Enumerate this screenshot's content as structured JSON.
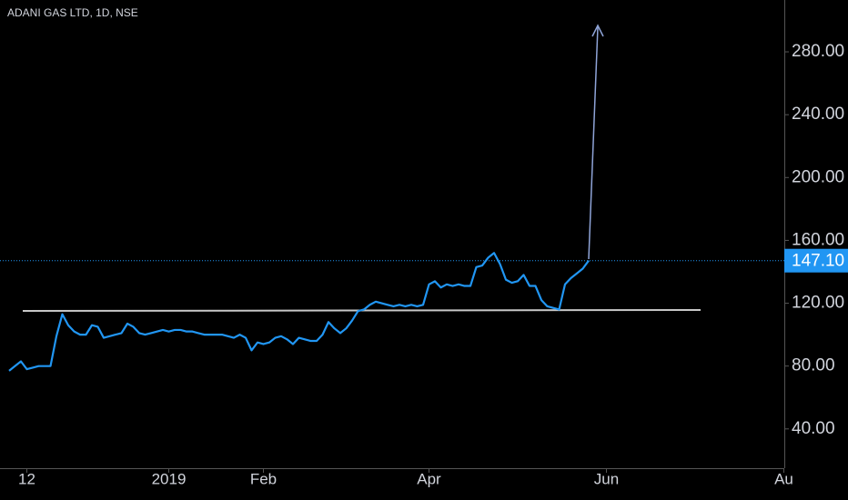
{
  "chart_data": {
    "type": "line",
    "title": "ADANI GAS LTD, 1D, NSE",
    "categories": [
      null,
      null,
      null,
      "12",
      null,
      null,
      null,
      null,
      null,
      null,
      null,
      null,
      null,
      null,
      null,
      null,
      null,
      null,
      null,
      null,
      null,
      null,
      null,
      null,
      null,
      null,
      null,
      "2019",
      null,
      null,
      null,
      null,
      null,
      null,
      null,
      null,
      null,
      null,
      null,
      null,
      null,
      null,
      null,
      "Feb",
      null,
      null,
      null,
      null,
      null,
      null,
      null,
      null,
      null,
      null,
      null,
      null,
      null,
      null,
      null,
      null,
      null,
      null,
      null,
      null,
      null,
      null,
      null,
      null,
      null,
      null,
      null,
      "Apr",
      null,
      null,
      null,
      null,
      null,
      null,
      null,
      null,
      null,
      null,
      null,
      null,
      null,
      null,
      null,
      null,
      null,
      null,
      null,
      null,
      null,
      null,
      null,
      null,
      null,
      null,
      null,
      null,
      null,
      "Jun",
      null,
      null,
      null,
      null,
      null,
      null,
      null,
      null,
      null,
      null,
      null,
      null,
      null,
      null,
      null,
      null,
      null,
      null,
      null,
      null,
      null,
      null,
      null,
      null,
      null,
      null,
      null,
      null,
      null,
      "Au",
      null
    ],
    "series": [
      {
        "color": "#2196f3",
        "values": [
          77,
          80,
          83,
          78,
          79,
          80,
          80,
          80,
          99,
          113,
          106,
          102,
          100,
          100,
          106,
          105,
          98,
          99,
          100,
          101,
          107,
          105,
          101,
          100,
          101,
          102,
          103,
          102,
          103,
          103,
          102,
          102,
          101,
          100,
          100,
          100,
          100,
          99,
          98,
          100,
          98,
          90,
          95,
          94,
          95,
          98,
          99,
          97,
          94,
          98,
          97,
          96,
          96,
          100,
          108,
          104,
          101,
          104,
          109,
          115,
          116,
          119,
          121,
          120,
          119,
          118,
          119,
          118,
          119,
          118,
          119,
          132,
          134,
          130,
          132,
          131,
          132,
          131,
          131,
          143,
          144,
          149,
          152,
          145,
          135,
          133,
          134,
          138,
          131,
          131,
          122,
          118,
          117,
          116,
          132,
          136,
          139,
          142,
          147.1,
          null,
          null,
          null,
          null,
          null,
          null,
          null,
          null,
          null,
          null,
          null,
          null,
          null,
          null,
          null,
          null,
          null,
          null,
          null,
          null,
          null,
          null,
          null,
          null,
          null,
          null,
          null,
          null,
          null,
          null,
          null,
          null,
          null,
          null
        ]
      }
    ],
    "price_label": "147.10",
    "ylim": [
      15,
      313
    ],
    "yticks": [
      {
        "value": 40,
        "label": "40.00"
      },
      {
        "value": 80,
        "label": "80.00"
      },
      {
        "value": 120,
        "label": "120.00"
      },
      {
        "value": 160,
        "label": "160.00"
      },
      {
        "value": 200,
        "label": "200.00"
      },
      {
        "value": 240,
        "label": "240.00"
      },
      {
        "value": 280,
        "label": "280.00"
      }
    ]
  }
}
